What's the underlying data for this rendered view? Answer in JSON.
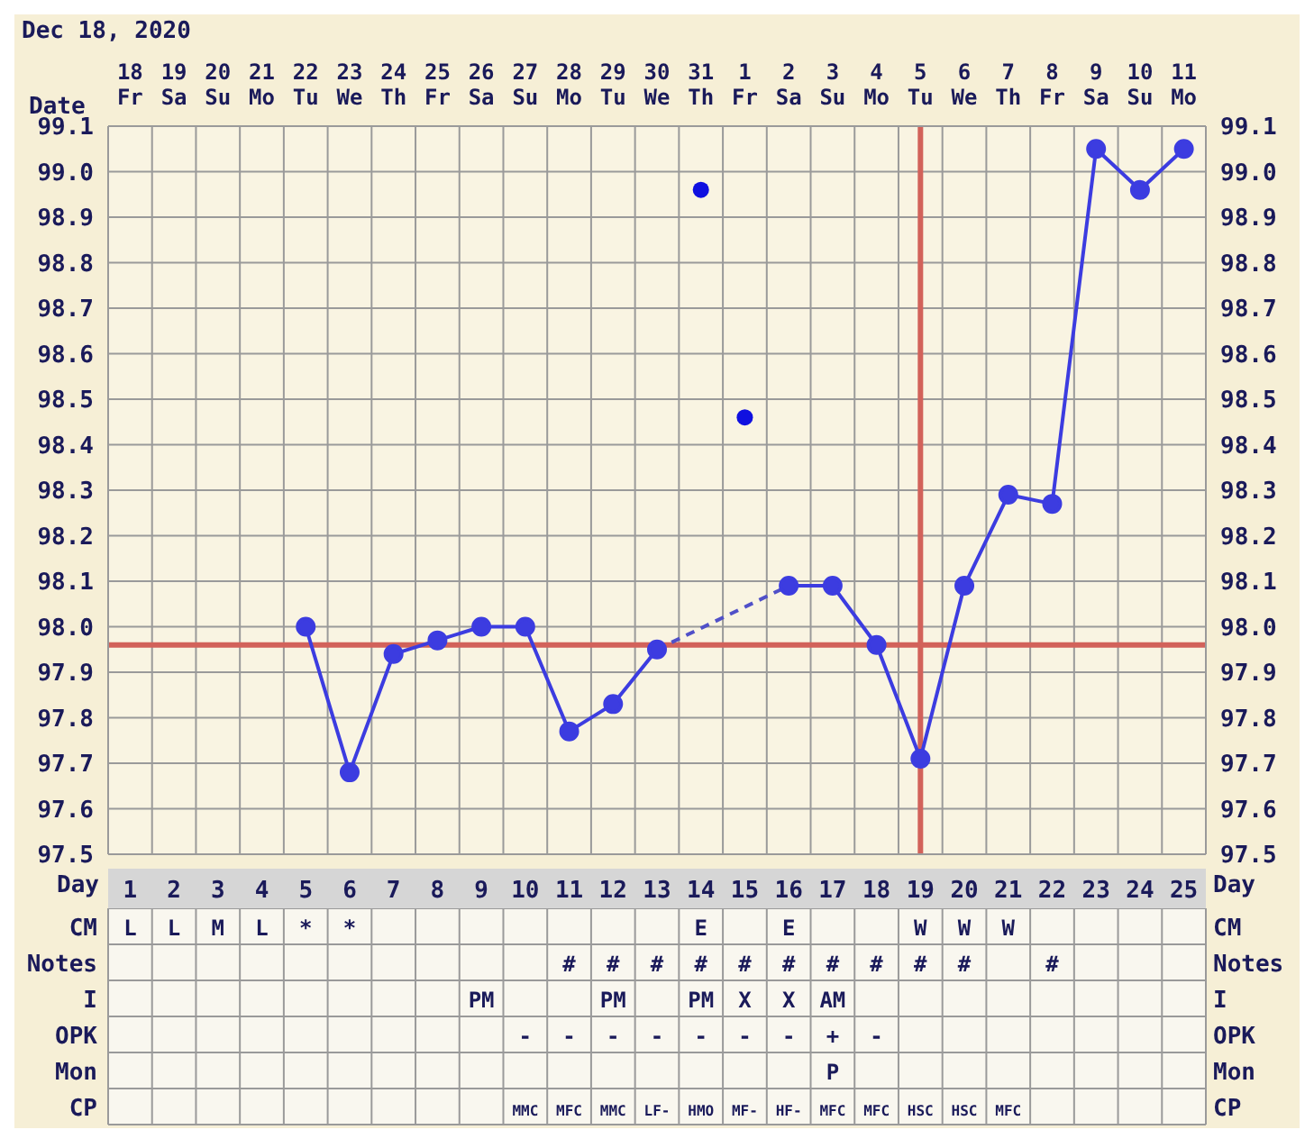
{
  "chart_data": [
    {
      "type": "line",
      "title": "Dec 18, 2020",
      "xlabel": "Day",
      "x2label": "Date",
      "xlim": [
        0.5,
        25.5
      ],
      "xticks": [
        1,
        2,
        3,
        4,
        5,
        6,
        7,
        8,
        9,
        10,
        11,
        12,
        13,
        14,
        15,
        16,
        17,
        18,
        19,
        20,
        21,
        22,
        23,
        24,
        25
      ],
      "x2lim": [
        "2020-12-17T12:00",
        "2021-01-11T12:00"
      ],
      "x2ticks": [
        {
          "value": "2020-12-18",
          "label": "18 Fr"
        },
        {
          "value": "2020-12-19",
          "label": "19 Sa"
        },
        {
          "value": "2020-12-20",
          "label": "20 Su"
        },
        {
          "value": "2020-12-21",
          "label": "21 Mo"
        },
        {
          "value": "2020-12-22",
          "label": "22 Tu"
        },
        {
          "value": "2020-12-23",
          "label": "23 We"
        },
        {
          "value": "2020-12-24",
          "label": "24 Th"
        },
        {
          "value": "2020-12-25",
          "label": "25 Fr"
        },
        {
          "value": "2020-12-26",
          "label": "26 Sa"
        },
        {
          "value": "2020-12-27",
          "label": "27 Su"
        },
        {
          "value": "2020-12-28",
          "label": "28 Mo"
        },
        {
          "value": "2020-12-29",
          "label": "29 Tu"
        },
        {
          "value": "2020-12-30",
          "label": "30 We"
        },
        {
          "value": "2020-12-31",
          "label": "31 Th"
        },
        {
          "value": "2021-01-01",
          "label": "1 Fr"
        },
        {
          "value": "2021-01-02",
          "label": "2 Sa"
        },
        {
          "value": "2021-01-03",
          "label": "3 Su"
        },
        {
          "value": "2021-01-04",
          "label": "4 Mo"
        },
        {
          "value": "2021-01-05",
          "label": "5 Tu"
        },
        {
          "value": "2021-01-06",
          "label": "6 We"
        },
        {
          "value": "2021-01-07",
          "label": "7 Th"
        },
        {
          "value": "2021-01-08",
          "label": "8 Fr"
        },
        {
          "value": "2021-01-09",
          "label": "9 Sa"
        },
        {
          "value": "2021-01-10",
          "label": "10 Su"
        },
        {
          "value": "2021-01-11",
          "label": "11 Mo"
        }
      ],
      "series": [
        {
          "type": "line",
          "color": "#3c3ce0",
          "line_style": "solid",
          "marker": "circle",
          "x": [
            5,
            6,
            7,
            8,
            9,
            10,
            11,
            12,
            13,
            14,
            15,
            16,
            17,
            18,
            19,
            20,
            21,
            22,
            23,
            24,
            25
          ],
          "values": [
            98.0,
            97.68,
            97.94,
            97.97,
            98.0,
            98.0,
            97.77,
            97.83,
            97.95,
            null,
            null,
            98.09,
            98.09,
            97.96,
            97.71,
            98.09,
            98.29,
            98.27,
            99.05,
            98.96,
            99.05
          ]
        },
        {
          "type": "line",
          "color": "#5050c8",
          "line_style": "dashed",
          "marker": "none",
          "x": [
            13,
            16
          ],
          "values": [
            97.95,
            98.09
          ]
        },
        {
          "type": "scatter",
          "color": "#1010e0",
          "marker": "circle",
          "x": [
            14,
            15
          ],
          "values": [
            98.96,
            98.46
          ]
        }
      ],
      "ylim": [
        97.5,
        99.1
      ],
      "yticks": [
        97.5,
        97.6,
        97.7,
        97.8,
        97.9,
        {
          "value": 98,
          "label": "98.0"
        },
        98.1,
        98.2,
        98.3,
        98.4,
        98.5,
        98.6,
        98.7,
        98.8,
        98.9,
        {
          "value": 99,
          "label": "99.0"
        },
        99.1
      ],
      "y2lim": [
        97.5,
        99.1
      ],
      "y2ticks": [
        97.5,
        97.6,
        97.7,
        97.8,
        97.9,
        {
          "value": 98,
          "label": "98.0"
        },
        98.1,
        98.2,
        98.3,
        98.4,
        98.5,
        98.6,
        98.7,
        98.8,
        98.9,
        {
          "value": 99,
          "label": "99.0"
        },
        99.1
      ],
      "ref_lines": [
        {
          "axis": "y",
          "value": 97.96,
          "color": "#d2625a"
        },
        {
          "axis": "x",
          "value": 19,
          "color": "#d2625a"
        }
      ],
      "grid": true
    },
    {
      "type": "other",
      "y_categories": [
        "CM",
        "Notes",
        "I",
        "OPK",
        "Mon",
        "CP"
      ],
      "y2_categories": [
        "CM",
        "Notes",
        "I",
        "OPK",
        "Mon",
        "CP"
      ],
      "cell_labels": [
        [
          "L",
          "L",
          "M",
          "L",
          "*",
          "*",
          null,
          null,
          null,
          null,
          null,
          null,
          null,
          "E",
          null,
          "E",
          null,
          null,
          "W",
          "W",
          "W",
          null,
          null,
          null,
          null
        ],
        [
          null,
          null,
          null,
          null,
          null,
          null,
          null,
          null,
          null,
          null,
          "#",
          "#",
          "#",
          "#",
          "#",
          "#",
          "#",
          "#",
          "#",
          "#",
          null,
          "#",
          null,
          null,
          null
        ],
        [
          null,
          null,
          null,
          null,
          null,
          null,
          null,
          null,
          "PM",
          null,
          null,
          "PM",
          null,
          "PM",
          "X",
          "X",
          "AM",
          null,
          null,
          null,
          null,
          null,
          null,
          null,
          null
        ],
        [
          null,
          null,
          null,
          null,
          null,
          null,
          null,
          null,
          null,
          "-",
          "-",
          "-",
          "-",
          "-",
          "-",
          "-",
          "+",
          "-",
          null,
          null,
          null,
          null,
          null,
          null,
          null
        ],
        [
          null,
          null,
          null,
          null,
          null,
          null,
          null,
          null,
          null,
          null,
          null,
          null,
          null,
          null,
          null,
          null,
          "P",
          null,
          null,
          null,
          null,
          null,
          null,
          null,
          null
        ],
        [
          null,
          null,
          null,
          null,
          null,
          null,
          null,
          null,
          null,
          "MMC",
          "MFC",
          "MMC",
          "LF-",
          "HMO",
          "MF-",
          "HF-",
          "MFC",
          "MFC",
          "HSC",
          "HSC",
          "MFC",
          null,
          null,
          null,
          null
        ]
      ]
    }
  ]
}
